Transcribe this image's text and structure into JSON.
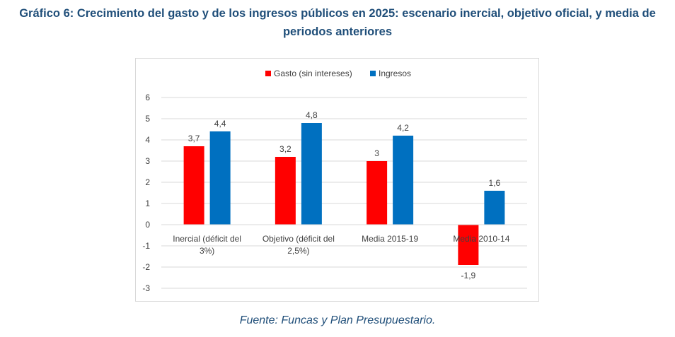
{
  "page": {
    "title": "Gráfico 6: Crecimiento del gasto y de los ingresos públicos en 2025: escenario inercial, objetivo oficial, y media de periodos anteriores",
    "source": "Fuente: Funcas y Plan Presupuestario."
  },
  "chart_data": {
    "type": "bar",
    "categories": [
      [
        "Inercial (déficit del",
        "3%)"
      ],
      [
        "Objetivo (déficit del",
        "2,5%)"
      ],
      [
        "Media 2015-19"
      ],
      [
        "Media 2010-14"
      ]
    ],
    "series": [
      {
        "name": "Gasto (sin intereses)",
        "values": [
          3.7,
          3.2,
          3,
          -1.9
        ],
        "labels": [
          "3,7",
          "3,2",
          "3",
          "-1,9"
        ],
        "color": "#ff0000"
      },
      {
        "name": "Ingresos",
        "values": [
          4.4,
          4.8,
          4.2,
          1.6
        ],
        "labels": [
          "4,4",
          "4,8",
          "4,2",
          "1,6"
        ],
        "color": "#0070c0"
      }
    ],
    "ylim": [
      -3,
      6
    ],
    "yticks": [
      6,
      5,
      4,
      3,
      2,
      1,
      0,
      -1,
      -2,
      -3
    ],
    "legend_position": "top-center",
    "grid": true
  }
}
